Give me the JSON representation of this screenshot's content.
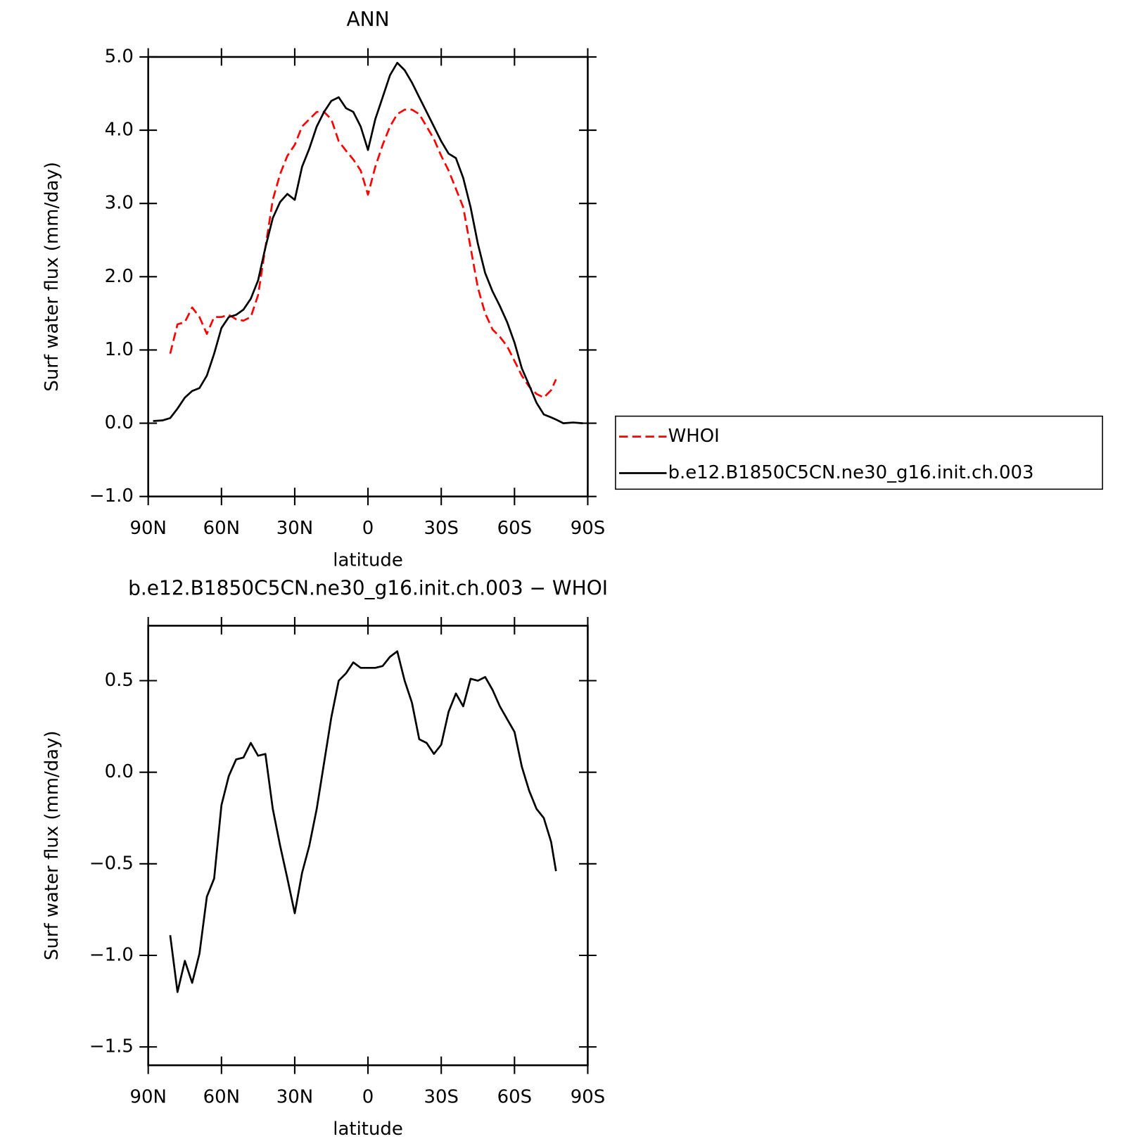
{
  "chart_data": [
    {
      "type": "line",
      "title": "ANN",
      "xlabel": "latitude",
      "ylabel": "Surf water flux (mm/day)",
      "x": [
        88,
        84,
        81,
        78,
        75,
        72,
        69,
        66,
        63,
        60,
        57,
        54,
        51,
        48,
        45,
        42,
        39,
        36,
        33,
        30,
        27,
        24,
        21,
        18,
        15,
        12,
        9,
        6,
        3,
        0,
        -3,
        -6,
        -9,
        -12,
        -15,
        -18,
        -21,
        -24,
        -27,
        -30,
        -33,
        -36,
        -39,
        -42,
        -45,
        -48,
        -51,
        -54,
        -57,
        -60,
        -63,
        -66,
        -69,
        -72,
        -75,
        -77,
        -80,
        -84,
        -88
      ],
      "series": [
        {
          "name": "WHOI",
          "color": "#ff0000",
          "dashed": true,
          "values": [
            null,
            null,
            0.95,
            1.35,
            1.38,
            1.58,
            1.45,
            1.22,
            1.45,
            1.45,
            1.48,
            1.42,
            1.4,
            1.45,
            1.75,
            2.4,
            3.05,
            3.4,
            3.65,
            3.8,
            4.05,
            4.15,
            4.25,
            4.25,
            4.15,
            3.85,
            3.72,
            3.6,
            3.45,
            3.12,
            3.5,
            3.8,
            4.05,
            4.22,
            4.28,
            4.28,
            4.22,
            4.05,
            3.88,
            3.65,
            3.45,
            3.2,
            2.95,
            2.4,
            1.85,
            1.5,
            1.28,
            1.18,
            1.05,
            0.85,
            0.65,
            0.5,
            0.4,
            0.35,
            0.45,
            0.6,
            null,
            null,
            null
          ]
        },
        {
          "name": "b.e12.B1850C5CN.ne30_g16.init.ch.003",
          "color": "#000000",
          "dashed": false,
          "values": [
            0.03,
            0.04,
            0.07,
            0.2,
            0.35,
            0.44,
            0.48,
            0.65,
            0.95,
            1.3,
            1.45,
            1.48,
            1.55,
            1.7,
            1.95,
            2.4,
            2.8,
            3.02,
            3.13,
            3.05,
            3.5,
            3.75,
            4.05,
            4.25,
            4.4,
            4.45,
            4.3,
            4.25,
            4.05,
            3.73,
            4.15,
            4.45,
            4.75,
            4.92,
            4.82,
            4.65,
            4.45,
            4.25,
            4.05,
            3.85,
            3.68,
            3.62,
            3.35,
            2.95,
            2.45,
            2.05,
            1.8,
            1.6,
            1.38,
            1.1,
            0.75,
            0.52,
            0.28,
            0.12,
            0.08,
            0.05,
            0.0,
            0.01,
            0.0
          ]
        }
      ],
      "xlim": [
        90,
        -90
      ],
      "xticks": [
        {
          "value": 90,
          "label": "90N"
        },
        {
          "value": 60,
          "label": "60N"
        },
        {
          "value": 30,
          "label": "30N"
        },
        0,
        {
          "value": -30,
          "label": "30S"
        },
        {
          "value": -60,
          "label": "60S"
        },
        {
          "value": -90,
          "label": "90S"
        }
      ],
      "ylim": [
        -1.0,
        5.0
      ],
      "yticks": [
        {
          "value": -1,
          "label": "−1.0"
        },
        {
          "value": 0,
          "label": "0.0"
        },
        {
          "value": 1,
          "label": "1.0"
        },
        {
          "value": 2,
          "label": "2.0"
        },
        {
          "value": 3,
          "label": "3.0"
        },
        {
          "value": 4,
          "label": "4.0"
        },
        {
          "value": 5,
          "label": "5.0"
        }
      ],
      "legend": "right"
    },
    {
      "type": "line",
      "title": "b.e12.B1850C5CN.ne30_g16.init.ch.003 − WHOI",
      "xlabel": "latitude",
      "ylabel": "Surf water flux (mm/day)",
      "x": [
        88,
        84,
        81,
        78,
        75,
        72,
        69,
        66,
        63,
        60,
        57,
        54,
        51,
        48,
        45,
        42,
        39,
        36,
        33,
        30,
        27,
        24,
        21,
        18,
        15,
        12,
        9,
        6,
        3,
        0,
        -3,
        -6,
        -9,
        -12,
        -15,
        -18,
        -21,
        -24,
        -27,
        -30,
        -33,
        -36,
        -39,
        -42,
        -45,
        -48,
        -51,
        -54,
        -57,
        -60,
        -63,
        -66,
        -69,
        -72,
        -75,
        -77,
        -80,
        -84,
        -88
      ],
      "series": [
        {
          "color": "#000000",
          "dashed": false,
          "values": [
            null,
            null,
            -0.89,
            -1.2,
            -1.03,
            -1.15,
            -0.99,
            -0.68,
            -0.58,
            -0.18,
            -0.02,
            0.07,
            0.08,
            0.16,
            0.09,
            0.1,
            -0.2,
            -0.4,
            -0.58,
            -0.77,
            -0.55,
            -0.4,
            -0.2,
            0.05,
            0.3,
            0.5,
            0.54,
            0.6,
            0.57,
            0.57,
            0.57,
            0.58,
            0.63,
            0.66,
            0.5,
            0.38,
            0.18,
            0.16,
            0.1,
            0.15,
            0.33,
            0.43,
            0.36,
            0.51,
            0.5,
            0.52,
            0.45,
            0.36,
            0.29,
            0.22,
            0.03,
            -0.1,
            -0.2,
            -0.25,
            -0.38,
            -0.54,
            null,
            null,
            null
          ]
        }
      ],
      "xlim": [
        90,
        -90
      ],
      "xticks": [
        {
          "value": 90,
          "label": "90N"
        },
        {
          "value": 60,
          "label": "60N"
        },
        {
          "value": 30,
          "label": "30N"
        },
        0,
        {
          "value": -30,
          "label": "30S"
        },
        {
          "value": -60,
          "label": "60S"
        },
        {
          "value": -90,
          "label": "90S"
        }
      ],
      "ylim": [
        -1.6,
        0.8
      ],
      "yticks": [
        {
          "value": -1.5,
          "label": "−1.5"
        },
        {
          "value": -1,
          "label": "−1.0"
        },
        {
          "value": -0.5,
          "label": "−0.5"
        },
        {
          "value": 0,
          "label": "0.0"
        },
        {
          "value": 0.5,
          "label": "0.5"
        }
      ]
    }
  ]
}
